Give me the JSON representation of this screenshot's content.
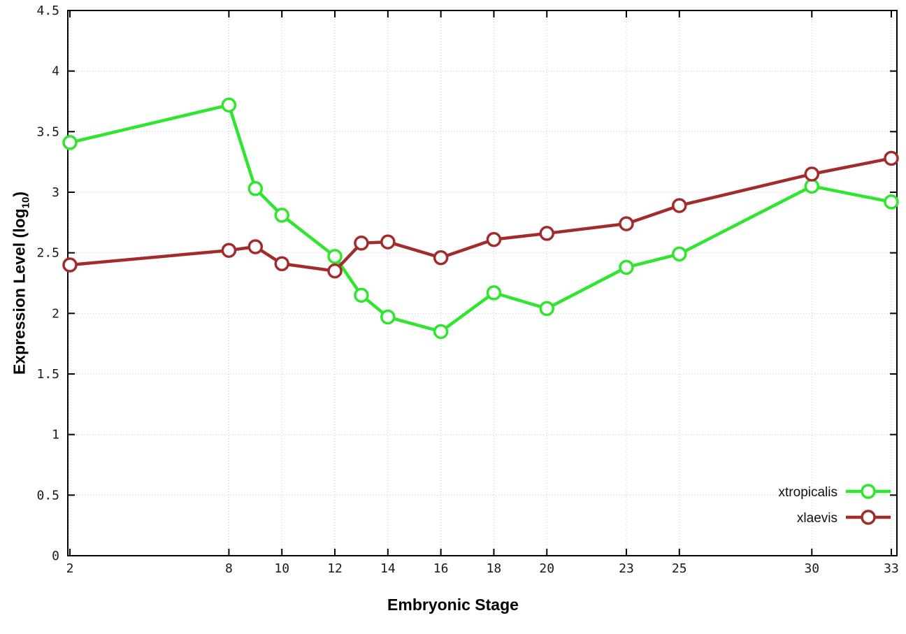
{
  "chart_data": {
    "type": "line",
    "title": "",
    "xlabel": "Embryonic Stage",
    "ylabel": {
      "prefix": "Expression Level (log",
      "sub": "10",
      "suffix": ")"
    },
    "xlim": [
      2,
      33
    ],
    "ylim": [
      0,
      4.5
    ],
    "grid": true,
    "legend_position": "bottom-right",
    "x": [
      2,
      8,
      9,
      10,
      12,
      13,
      14,
      16,
      18,
      20,
      23,
      25,
      30,
      33
    ],
    "x_tick_labels": [
      "2",
      "8",
      "10",
      "12",
      "14",
      "16",
      "18",
      "20",
      "23",
      "25",
      "30",
      "33"
    ],
    "x_tick_values": [
      2,
      8,
      10,
      12,
      14,
      16,
      18,
      20,
      23,
      25,
      30,
      33
    ],
    "y_tick_values": [
      0,
      0.5,
      1,
      1.5,
      2,
      2.5,
      3,
      3.5,
      4,
      4.5
    ],
    "y_tick_labels": [
      "0",
      "0.5",
      "1",
      "1.5",
      "2",
      "2.5",
      "3",
      "3.5",
      "4",
      "4.5"
    ],
    "series": [
      {
        "name": "xtropicalis",
        "color": "#2ee62e",
        "values": [
          3.41,
          3.72,
          3.03,
          2.81,
          2.47,
          2.15,
          1.97,
          1.85,
          2.17,
          2.04,
          2.38,
          2.49,
          3.05,
          2.92
        ]
      },
      {
        "name": "xlaevis",
        "color": "#a22c2c",
        "values": [
          2.4,
          2.52,
          2.55,
          2.41,
          2.35,
          2.58,
          2.59,
          2.46,
          2.61,
          2.66,
          2.74,
          2.89,
          3.15,
          3.28
        ]
      }
    ],
    "colors": {
      "grid": "#c8c8c8",
      "border": "#000000",
      "marker_fill": "#ffffff"
    }
  }
}
